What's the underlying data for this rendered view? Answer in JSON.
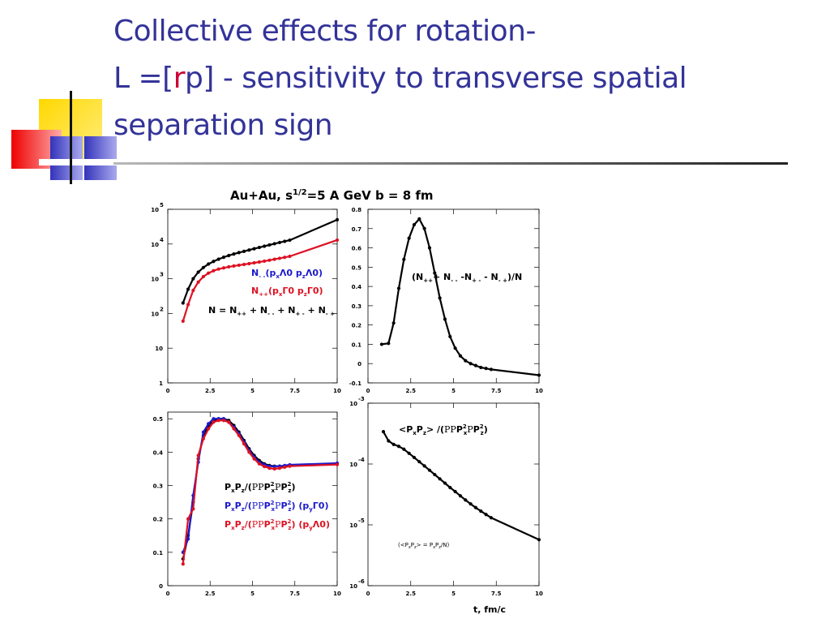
{
  "slide": {
    "title_line1": "Collective effects for rotation-",
    "title_line2_pre": "L =[",
    "title_line2_r": "r",
    "title_line2_post": "p] - sensitivity to transverse spatial",
    "title_line3": "separation sign"
  },
  "colors": {
    "title": "#333399",
    "red_letter": "#cc0033",
    "black_series": "#000000",
    "red_series": "#dd1122",
    "blue_series": "#1a1acc"
  },
  "figure": {
    "title_pre": "Au+Au, s",
    "title_sup": "1/2",
    "title_post": "=5 A GeV  b = 8 fm",
    "xlabel": "t, fm/c"
  },
  "chart_data": [
    {
      "type": "line",
      "panel": "top-left",
      "yscale": "log",
      "xlim": [
        0,
        10
      ],
      "ylim": [
        1,
        100000
      ],
      "x_ticks": [
        "0",
        "2.5",
        "5",
        "7.5",
        "10"
      ],
      "y_ticks": [
        {
          "value": 1,
          "label": "1",
          "exp": ""
        },
        {
          "value": 10,
          "label": "10",
          "exp": ""
        },
        {
          "value": 100,
          "label": "10",
          "exp": "2"
        },
        {
          "value": 1000,
          "label": "10",
          "exp": "3"
        },
        {
          "value": 10000,
          "label": "10",
          "exp": "4"
        },
        {
          "value": 100000,
          "label": "10",
          "exp": "5"
        }
      ],
      "x": [
        0.9,
        1.2,
        1.5,
        1.8,
        2.1,
        2.4,
        2.7,
        3.0,
        3.3,
        3.6,
        3.9,
        4.2,
        4.5,
        4.8,
        5.1,
        5.4,
        5.7,
        6.0,
        6.3,
        6.6,
        6.9,
        7.2,
        10.0
      ],
      "series": [
        {
          "color_key": "black_series",
          "values": [
            200,
            500,
            1000,
            1550,
            2100,
            2650,
            3150,
            3650,
            4150,
            4650,
            5150,
            5650,
            6150,
            6700,
            7300,
            7950,
            8650,
            9400,
            10200,
            11050,
            11950,
            12900,
            50000
          ]
        },
        {
          "color_key": "red_series",
          "values": [
            60,
            180,
            460,
            800,
            1150,
            1450,
            1700,
            1900,
            2050,
            2200,
            2330,
            2450,
            2580,
            2720,
            2870,
            3030,
            3210,
            3410,
            3630,
            3870,
            4130,
            4410,
            13000
          ]
        }
      ],
      "legend": [
        {
          "color_key": "blue_series",
          "pre": "N",
          "sub1": "- -",
          "mid": "(p",
          "sub2": "x",
          "mid2": "Λ0 p",
          "sub3": "z",
          "post": "Λ0)"
        },
        {
          "color_key": "red_series",
          "pre": "N",
          "sub1": "++",
          "mid": "(p",
          "sub2": "x",
          "mid2": "Γ0 p",
          "sub3": "z",
          "post": "Γ0)"
        },
        {
          "color_key": "black_series",
          "text": "N = N",
          "sub_a": "++",
          "t2": " + N",
          "sub_b": "- -",
          "t3": " + N",
          "sub_c": "+ -",
          "t4": " + N",
          "sub_d": "- +"
        }
      ]
    },
    {
      "type": "line",
      "panel": "top-right",
      "xlim": [
        0,
        10
      ],
      "ylim": [
        -0.1,
        0.8
      ],
      "x_ticks": [
        "0",
        "2.5",
        "5",
        "7.5",
        "10"
      ],
      "y_ticks": [
        "-0.1",
        "0",
        "0.1",
        "0.2",
        "0.3",
        "0.4",
        "0.5",
        "0.6",
        "0.7",
        "0.8"
      ],
      "x": [
        0.8,
        1.2,
        1.5,
        1.8,
        2.1,
        2.4,
        2.7,
        3.0,
        3.3,
        3.6,
        3.9,
        4.2,
        4.5,
        4.8,
        5.1,
        5.4,
        5.7,
        6.0,
        6.3,
        6.6,
        6.9,
        7.2,
        10.0
      ],
      "series": [
        {
          "color_key": "black_series",
          "values": [
            0.1,
            0.105,
            0.21,
            0.39,
            0.54,
            0.65,
            0.72,
            0.75,
            0.7,
            0.6,
            0.47,
            0.34,
            0.23,
            0.14,
            0.08,
            0.04,
            0.015,
            0.0,
            -0.01,
            -0.02,
            -0.025,
            -0.03,
            -0.06
          ]
        }
      ],
      "annotation": {
        "t1": "(N",
        "s1": "++",
        "t2": "+ N",
        "s2": "- -",
        "t3": " -N",
        "s3": "+ -",
        "t4": " - N",
        "s4": "- +",
        "t5": ")/N"
      }
    },
    {
      "type": "line",
      "panel": "bottom-left",
      "xlim": [
        0,
        10
      ],
      "ylim": [
        0,
        0.52
      ],
      "x_ticks": [
        "0",
        "2.5",
        "5",
        "7.5",
        "10"
      ],
      "y_ticks": [
        "0",
        "0.1",
        "0.2",
        "0.3",
        "0.4",
        "0.5"
      ],
      "x": [
        0.9,
        1.2,
        1.5,
        1.8,
        2.1,
        2.4,
        2.7,
        3.0,
        3.3,
        3.6,
        3.9,
        4.2,
        4.5,
        4.8,
        5.1,
        5.4,
        5.7,
        6.0,
        6.3,
        6.6,
        6.9,
        7.2,
        10.0
      ],
      "series": [
        {
          "color_key": "black_series",
          "values": [
            0.08,
            0.15,
            0.25,
            0.38,
            0.45,
            0.48,
            0.495,
            0.5,
            0.5,
            0.495,
            0.48,
            0.46,
            0.435,
            0.41,
            0.39,
            0.375,
            0.365,
            0.36,
            0.358,
            0.358,
            0.358,
            0.36,
            0.365
          ]
        },
        {
          "color_key": "blue_series",
          "values": [
            0.1,
            0.14,
            0.27,
            0.37,
            0.46,
            0.485,
            0.5,
            0.5,
            0.5,
            0.49,
            0.475,
            0.455,
            0.43,
            0.405,
            0.385,
            0.37,
            0.362,
            0.358,
            0.357,
            0.358,
            0.36,
            0.362,
            0.367
          ]
        },
        {
          "color_key": "red_series",
          "values": [
            0.065,
            0.2,
            0.23,
            0.39,
            0.44,
            0.47,
            0.49,
            0.495,
            0.495,
            0.49,
            0.47,
            0.45,
            0.425,
            0.4,
            0.38,
            0.365,
            0.357,
            0.352,
            0.35,
            0.352,
            0.355,
            0.358,
            0.363
          ]
        }
      ],
      "legend": [
        {
          "color_key": "black_series",
          "suffix": ""
        },
        {
          "color_key": "blue_series",
          "suffix": " (p",
          "s_y": "y",
          "end": "Γ0)"
        },
        {
          "color_key": "red_series",
          "suffix": " (p",
          "s_y": "y",
          "end": "Λ0)"
        }
      ]
    },
    {
      "type": "line",
      "panel": "bottom-right",
      "yscale": "log",
      "xlim": [
        0,
        10
      ],
      "ylim": [
        1e-06,
        0.001
      ],
      "x_ticks": [
        "0",
        "2.5",
        "5",
        "7.5",
        "10"
      ],
      "y_ticks": [
        {
          "value": 1e-06,
          "label": "10",
          "exp": "-6"
        },
        {
          "value": 1e-05,
          "label": "10",
          "exp": "-5"
        },
        {
          "value": 0.0001,
          "label": "10",
          "exp": "-4"
        },
        {
          "value": 0.001,
          "label": "10",
          "exp": "-3"
        }
      ],
      "x": [
        0.9,
        1.2,
        1.5,
        1.8,
        2.1,
        2.4,
        2.7,
        3.0,
        3.3,
        3.6,
        3.9,
        4.2,
        4.5,
        4.8,
        5.1,
        5.4,
        5.7,
        6.0,
        6.3,
        6.6,
        6.9,
        7.2,
        10.0
      ],
      "series": [
        {
          "color_key": "black_series",
          "values": [
            0.00034,
            0.00024,
            0.00021,
            0.000195,
            0.000175,
            0.00015,
            0.000128,
            0.000109,
            9.3e-05,
            7.9e-05,
            6.7e-05,
            5.7e-05,
            4.85e-05,
            4.1e-05,
            3.52e-05,
            3e-05,
            2.56e-05,
            2.21e-05,
            1.92e-05,
            1.68e-05,
            1.48e-05,
            1.31e-05,
            5.7e-06
          ]
        }
      ],
      "label": {
        "t1": "<P",
        "s1": "x",
        "t2": "P",
        "s2": "z",
        "t3": "> /(",
        "t4": "P",
        "t5": "P",
        "sup5": "2",
        "sub5": "x",
        "t6": "P",
        "t7": "P",
        "sup7": "2",
        "sub7": "z",
        "t8": ")"
      },
      "note": {
        "t1": "(<P",
        "s1": "x",
        "t2": "P",
        "s2": "z",
        "t3": "> = P",
        "s3": "x",
        "t4": "P",
        "s4": "z",
        "t5": "/N)"
      }
    }
  ]
}
